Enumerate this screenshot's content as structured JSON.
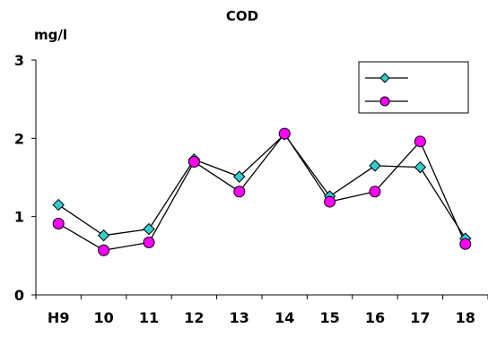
{
  "chart_data": {
    "type": "line",
    "title": "COD",
    "ylabel": "mg/l",
    "xlabel": "",
    "categories": [
      "H9",
      "10",
      "11",
      "12",
      "13",
      "14",
      "15",
      "16",
      "17",
      "18"
    ],
    "ylim": [
      0,
      3
    ],
    "yticks": [
      "0",
      "1",
      "2",
      "3"
    ],
    "grid": false,
    "legend": "top-right",
    "series": [
      {
        "marker": "diamond",
        "color": "#33cccc",
        "values": [
          1.15,
          0.76,
          0.84,
          1.73,
          1.51,
          2.05,
          1.26,
          1.65,
          1.63,
          0.72
        ]
      },
      {
        "marker": "circle",
        "color": "#ff00ff",
        "values": [
          0.91,
          0.57,
          0.67,
          1.7,
          1.32,
          2.06,
          1.19,
          1.32,
          1.96,
          0.65
        ]
      }
    ]
  }
}
